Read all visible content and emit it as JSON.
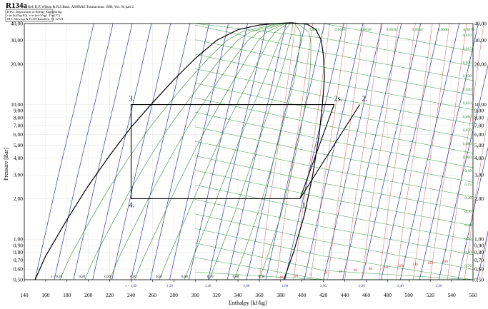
{
  "header": {
    "title": "R134a",
    "reference": "Ref. D.P. Wilson & R.S.Basu, ASHRAE Transactions 1988, Vol. 94 part 2.",
    "info_lines": [
      "DTU, Department of Energy Engineering",
      "s in [kJ/(kg K)]. v in [m^3/kg]. T in [ºC]",
      "M.J. Skovrup & H.J.H Knudsen. 11-12-04"
    ]
  },
  "colors": {
    "dome": "#000000",
    "isentropes": "#2b3a9a",
    "isotherms": "#d06060",
    "isochores": "#3a9a3a",
    "quality": "#2f8a2f",
    "cycle": "#000000"
  },
  "chart_data": {
    "type": "line",
    "title": "R134a",
    "xlabel": "Enthalpy [kJ/kg]",
    "ylabel": "Pressure [Bar]",
    "xscale": "linear",
    "yscale": "log",
    "xlim": [
      140,
      560
    ],
    "ylim": [
      0.5,
      40
    ],
    "x_ticks": [
      "140",
      "160",
      "180",
      "200",
      "220",
      "240",
      "260",
      "280",
      "300",
      "320",
      "340",
      "360",
      "380",
      "400",
      "420",
      "440",
      "460",
      "480",
      "500",
      "520",
      "540",
      "560"
    ],
    "y_ticks": [
      {
        "value": 0.5,
        "label": "0,50"
      },
      {
        "value": 0.6,
        "label": "0,60"
      },
      {
        "value": 0.7,
        "label": "0,70"
      },
      {
        "value": 0.8,
        "label": "0,80"
      },
      {
        "value": 0.9,
        "label": "0,90"
      },
      {
        "value": 1.0,
        "label": "1,00"
      },
      {
        "value": 2.0,
        "label": "2,00"
      },
      {
        "value": 3.0,
        "label": "3,00"
      },
      {
        "value": 4.0,
        "label": "4,00"
      },
      {
        "value": 5.0,
        "label": "5,00"
      },
      {
        "value": 6.0,
        "label": "6,00"
      },
      {
        "value": 7.0,
        "label": "7,00"
      },
      {
        "value": 8.0,
        "label": "8,00"
      },
      {
        "value": 9.0,
        "label": "9,00"
      },
      {
        "value": 10.0,
        "label": "10,00"
      },
      {
        "value": 20.0,
        "label": "20,00"
      },
      {
        "value": 30.0,
        "label": "30,00"
      },
      {
        "value": 40.0,
        "label": "40,00"
      }
    ],
    "grid": true,
    "series": [
      {
        "name": "saturated liquid",
        "points": [
          [
            150,
            0.5
          ],
          [
            160,
            0.75
          ],
          [
            180,
            1.4
          ],
          [
            200,
            2.5
          ],
          [
            220,
            4.2
          ],
          [
            240,
            6.8
          ],
          [
            260,
            10.3
          ],
          [
            280,
            15.3
          ],
          [
            300,
            22.0
          ],
          [
            320,
            30.0
          ],
          [
            340,
            36.0
          ],
          [
            360,
            39.0
          ],
          [
            375,
            40.0
          ],
          [
            390,
            40.6
          ]
        ]
      },
      {
        "name": "saturated vapor",
        "points": [
          [
            390,
            40.6
          ],
          [
            405,
            39.5
          ],
          [
            413,
            36.0
          ],
          [
            418,
            30.0
          ],
          [
            420,
            23.0
          ],
          [
            421,
            16.0
          ],
          [
            419,
            10.0
          ],
          [
            416,
            6.0
          ],
          [
            410,
            3.0
          ],
          [
            402,
            1.5
          ],
          [
            392,
            0.8
          ],
          [
            383,
            0.5
          ]
        ]
      },
      {
        "name": "cycle",
        "points": [
          [
            398,
            2.0
          ],
          [
            430,
            10.0
          ],
          [
            240,
            10.0
          ],
          [
            240,
            2.0
          ],
          [
            398,
            2.0
          ]
        ]
      },
      {
        "name": "isentropic compression",
        "points": [
          [
            398,
            2.0
          ],
          [
            454,
            10.0
          ]
        ]
      }
    ],
    "states": [
      {
        "label": "1.",
        "h": 398,
        "p": 2.0
      },
      {
        "label": "2s.",
        "h": 430,
        "p": 10.0
      },
      {
        "label": "2.",
        "h": 454,
        "p": 10.0
      },
      {
        "label": "3.",
        "h": 240,
        "p": 10.0
      },
      {
        "label": "4.",
        "h": 240,
        "p": 2.0
      }
    ],
    "quality_labels": [
      "x = 0,10",
      "0,20",
      "0,30",
      "0,40",
      "0,50",
      "0,60",
      "0,70",
      "0,80",
      "0,90"
    ],
    "entropy_labels": [
      "s = 1,00",
      "1,20",
      "1,40",
      "1,60",
      "1,80",
      "2,00",
      "2,20",
      "2,40",
      "2,60"
    ],
    "temperature_labels": [
      "-40",
      "-20",
      "0",
      "20",
      "40",
      "60",
      "80",
      "100",
      "120",
      "140",
      "160",
      "180"
    ],
    "volume_labels": [
      "0,0015",
      "0,0020",
      "0,0030",
      "0,0040",
      "0,0050",
      "0,0060",
      "0,0070",
      "0,010",
      "0,015",
      "0,020",
      "0,030",
      "0,040",
      "0,050",
      "0,060",
      "0,070",
      "0,080",
      "0,090",
      "0,10",
      "0,15",
      "0,20",
      "0,30",
      "0,40",
      "0,50",
      "0,60",
      "0,70"
    ]
  }
}
